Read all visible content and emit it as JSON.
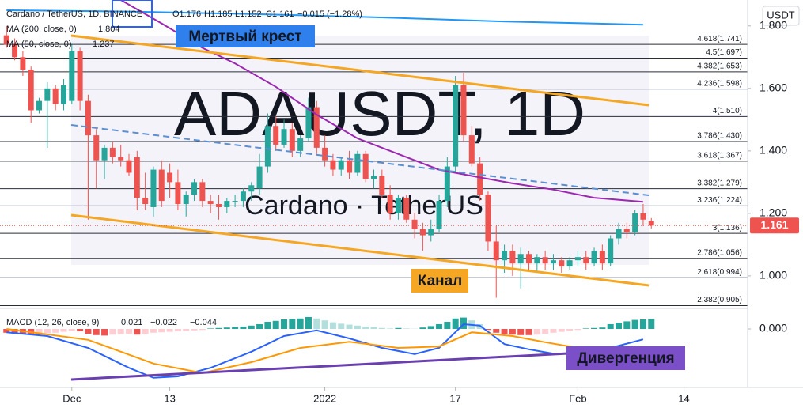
{
  "header": {
    "symbol": "Cardano / TetherUS, 1D, BINANCE",
    "open": "O1.176",
    "high": "H1.185",
    "low": "L1.152",
    "close": "C1.161",
    "change": "−0.015 (−1.28%)"
  },
  "chart_data": {
    "type": "candlestick",
    "watermark": "ADAUSDT, 1D",
    "watermark_sub": "Cardano · TetherUS",
    "currency": "USDT",
    "xlim": [
      -0.8,
      90.8
    ],
    "xticks": [
      {
        "value": 8,
        "label": "Dec"
      },
      {
        "value": 20,
        "label": "13"
      },
      {
        "value": 39,
        "label": "2022"
      },
      {
        "value": 55,
        "label": "17"
      },
      {
        "value": 70,
        "label": "Feb"
      },
      {
        "value": 83,
        "label": "14"
      }
    ],
    "ylim": [
      0.896,
      1.883
    ],
    "yticks": [
      {
        "value": 1,
        "label": "1.000"
      },
      {
        "value": 1.2,
        "label": "1.200"
      },
      {
        "value": 1.4,
        "label": "1.400"
      },
      {
        "value": 1.6,
        "label": "1.600"
      },
      {
        "value": 1.8,
        "label": "1.800"
      }
    ],
    "last_price": 1.161,
    "up_color": "#26a69a",
    "down_color": "#ef5350",
    "candles": {
      "open": [
        1.77,
        1.74,
        1.7,
        1.66,
        1.53,
        1.56,
        1.6,
        1.55,
        1.56,
        1.72,
        1.56,
        1.45,
        1.37,
        1.41,
        1.38,
        1.37,
        1.38,
        1.25,
        1.22,
        1.34,
        1.33,
        1.3,
        1.23,
        1.26,
        1.3,
        1.24,
        1.23,
        1.22,
        1.24,
        1.24,
        1.27,
        1.28,
        1.35,
        1.48,
        1.42,
        1.47,
        1.4,
        1.44,
        1.54,
        1.41,
        1.37,
        1.34,
        1.37,
        1.33,
        1.39,
        1.31,
        1.32,
        1.26,
        1.2,
        1.25,
        1.18,
        1.15,
        1.13,
        1.15,
        1.24,
        1.35,
        1.61,
        1.45,
        1.36,
        1.26,
        1.11,
        1.05,
        1.08,
        1.04,
        1.07,
        1.04,
        1.06,
        1.04,
        1.05,
        1.03,
        1.05,
        1.06,
        1.04,
        1.08,
        1.04,
        1.12,
        1.15,
        1.14,
        1.2,
        1.176
      ],
      "high": [
        1.8,
        1.76,
        1.72,
        1.67,
        1.57,
        1.62,
        1.61,
        1.63,
        1.74,
        1.73,
        1.58,
        1.47,
        1.42,
        1.43,
        1.42,
        1.39,
        1.4,
        1.33,
        1.35,
        1.37,
        1.36,
        1.34,
        1.27,
        1.31,
        1.31,
        1.26,
        1.26,
        1.25,
        1.26,
        1.28,
        1.3,
        1.39,
        1.52,
        1.51,
        1.5,
        1.49,
        1.45,
        1.57,
        1.56,
        1.45,
        1.39,
        1.38,
        1.4,
        1.4,
        1.4,
        1.34,
        1.34,
        1.29,
        1.26,
        1.26,
        1.2,
        1.17,
        1.18,
        1.26,
        1.38,
        1.64,
        1.65,
        1.48,
        1.38,
        1.27,
        1.16,
        1.1,
        1.1,
        1.09,
        1.08,
        1.07,
        1.08,
        1.07,
        1.06,
        1.06,
        1.08,
        1.08,
        1.09,
        1.1,
        1.13,
        1.17,
        1.17,
        1.21,
        1.23,
        1.185
      ],
      "low": [
        1.73,
        1.69,
        1.64,
        1.49,
        1.52,
        1.41,
        1.53,
        1.53,
        1.55,
        1.53,
        1.18,
        1.28,
        1.31,
        1.36,
        1.35,
        1.32,
        1.21,
        1.21,
        1.19,
        1.22,
        1.25,
        1.21,
        1.19,
        1.24,
        1.22,
        1.2,
        1.18,
        1.2,
        1.22,
        1.22,
        1.24,
        1.26,
        1.33,
        1.4,
        1.41,
        1.38,
        1.38,
        1.43,
        1.39,
        1.35,
        1.32,
        1.32,
        1.31,
        1.32,
        1.3,
        1.28,
        1.25,
        1.18,
        1.18,
        1.17,
        1.12,
        1.08,
        1.11,
        1.14,
        1.22,
        1.33,
        1.43,
        1.35,
        1.24,
        1.08,
        0.93,
        1.01,
        1.0,
        0.96,
        1.02,
        1.01,
        1.02,
        1.02,
        1.01,
        1.02,
        1.03,
        1.02,
        1.03,
        1.02,
        1.03,
        1.1,
        1.12,
        1.13,
        1.16,
        1.152
      ],
      "close": [
        1.74,
        1.7,
        1.66,
        1.53,
        1.56,
        1.6,
        1.55,
        1.61,
        1.72,
        1.56,
        1.45,
        1.37,
        1.41,
        1.38,
        1.37,
        1.33,
        1.25,
        1.23,
        1.34,
        1.24,
        1.3,
        1.23,
        1.26,
        1.3,
        1.24,
        1.23,
        1.22,
        1.24,
        1.24,
        1.27,
        1.29,
        1.35,
        1.48,
        1.42,
        1.47,
        1.4,
        1.44,
        1.54,
        1.41,
        1.37,
        1.34,
        1.37,
        1.33,
        1.39,
        1.31,
        1.32,
        1.26,
        1.2,
        1.25,
        1.18,
        1.15,
        1.13,
        1.15,
        1.24,
        1.35,
        1.61,
        1.45,
        1.36,
        1.26,
        1.11,
        1.05,
        1.08,
        1.04,
        1.07,
        1.04,
        1.06,
        1.04,
        1.05,
        1.03,
        1.05,
        1.06,
        1.04,
        1.08,
        1.04,
        1.12,
        1.15,
        1.14,
        1.2,
        1.18,
        1.161
      ]
    },
    "series": [
      {
        "name": "MA (200, close, 0)",
        "color": "#2196f3",
        "x": [
          0,
          15,
          30,
          45,
          60,
          78
        ],
        "values": [
          1.85,
          1.846,
          1.838,
          1.828,
          1.815,
          1.804
        ]
      },
      {
        "name": "MA (50, close, 0)",
        "color": "#9c27b0",
        "x": [
          14,
          19,
          24,
          28,
          33,
          38,
          43,
          48,
          53,
          57,
          62,
          67,
          72,
          78
        ],
        "values": [
          1.883,
          1.808,
          1.73,
          1.68,
          1.605,
          1.516,
          1.44,
          1.39,
          1.34,
          1.32,
          1.296,
          1.276,
          1.25,
          1.237
        ]
      }
    ],
    "fib_levels": [
      {
        "value": 1.741,
        "label": "4.618(1.741)"
      },
      {
        "value": 1.697,
        "label": "4.5(1.697)"
      },
      {
        "value": 1.653,
        "label": "4.382(1.653)"
      },
      {
        "value": 1.598,
        "label": "4.236(1.598)"
      },
      {
        "value": 1.51,
        "label": "4(1.510)"
      },
      {
        "value": 1.43,
        "label": "3.786(1.430)"
      },
      {
        "value": 1.367,
        "label": "3.618(1.367)"
      },
      {
        "value": 1.279,
        "label": "3.382(1.279)"
      },
      {
        "value": 1.224,
        "label": "3.236(1.224)"
      },
      {
        "value": 1.136,
        "label": "3(1.136)"
      },
      {
        "value": 1.056,
        "label": "2.786(1.056)"
      },
      {
        "value": 0.994,
        "label": "2.618(0.994)"
      },
      {
        "value": 0.905,
        "label": "2.382(0.905)"
      }
    ],
    "annotations": [
      "Мертвый крест",
      "Канал",
      "Дивергенция"
    ],
    "macd": {
      "title": "MACD (12, 26, close, 9)",
      "value_labels": [
        "0.021",
        "−0.022",
        "−0.044"
      ],
      "ylim": [
        -0.12,
        0.04
      ],
      "yticks": [
        {
          "value": 0,
          "label": "0.000"
        }
      ],
      "histogram": [
        -0.008,
        -0.009,
        -0.01,
        -0.012,
        -0.011,
        -0.009,
        -0.008,
        -0.006,
        -0.004,
        -0.005,
        -0.01,
        -0.013,
        -0.014,
        -0.012,
        -0.011,
        -0.01,
        -0.012,
        -0.011,
        -0.008,
        -0.007,
        -0.006,
        -0.005,
        -0.004,
        -0.003,
        -0.002,
        0.001,
        0.002,
        0.003,
        0.004,
        0.005,
        0.007,
        0.01,
        0.015,
        0.017,
        0.02,
        0.021,
        0.022,
        0.025,
        0.022,
        0.018,
        0.014,
        0.011,
        0.009,
        0.007,
        0.005,
        0.004,
        0.002,
        0.001,
        0.002,
        0.001,
        0.0005,
        0.003,
        0.006,
        0.01,
        0.015,
        0.022,
        0.024,
        0.018,
        0.01,
        -0.002,
        -0.008,
        -0.011,
        -0.012,
        -0.013,
        -0.013,
        -0.012,
        -0.01,
        -0.008,
        -0.006,
        -0.004,
        -0.002,
        0.001,
        0.002,
        0.003,
        0.01,
        0.013,
        0.016,
        0.019,
        0.02,
        0.021
      ],
      "macd_line": {
        "color": "#2962ff",
        "x": [
          0,
          5,
          10,
          15,
          18,
          21,
          25,
          30,
          34,
          38,
          42,
          46,
          50,
          53,
          56,
          58,
          61,
          64,
          67,
          70,
          74,
          78
        ],
        "values": [
          -0.007,
          -0.015,
          -0.04,
          -0.082,
          -0.103,
          -0.1,
          -0.082,
          -0.048,
          -0.015,
          -0.003,
          -0.02,
          -0.04,
          -0.053,
          -0.04,
          0.01,
          0.007,
          -0.032,
          -0.043,
          -0.052,
          -0.053,
          -0.04,
          -0.022
        ]
      },
      "signal_line": {
        "color": "#ff9800",
        "x": [
          0,
          10,
          18,
          24,
          30,
          36,
          42,
          48,
          53,
          57,
          62,
          66,
          70,
          78
        ],
        "values": [
          0,
          -0.023,
          -0.073,
          -0.093,
          -0.07,
          -0.04,
          -0.027,
          -0.04,
          -0.037,
          -0.007,
          -0.015,
          -0.028,
          -0.04,
          -0.044
        ]
      }
    }
  }
}
